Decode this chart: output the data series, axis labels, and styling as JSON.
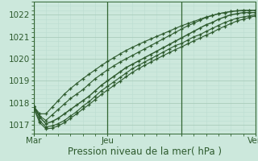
{
  "background_color": "#cce8dc",
  "plot_bg_color": "#cce8dc",
  "grid_color_major": "#aaccbb",
  "grid_color_minor": "#bbddd0",
  "line_color": "#2d5a2d",
  "xlim": [
    0,
    72
  ],
  "ylim": [
    1016.6,
    1022.6
  ],
  "yticks": [
    1017,
    1018,
    1019,
    1020,
    1021,
    1022
  ],
  "xtick_positions": [
    0,
    24,
    48,
    72
  ],
  "xtick_labels": [
    "Mar",
    "Jeu",
    "",
    "Ven"
  ],
  "xlabel": "Pression niveau de la mer( hPa )",
  "xlabel_fontsize": 8.5,
  "tick_fontsize": 7.5,
  "x_data": [
    0,
    2,
    4,
    6,
    8,
    10,
    12,
    14,
    16,
    18,
    20,
    22,
    24,
    26,
    28,
    30,
    32,
    34,
    36,
    38,
    40,
    42,
    44,
    46,
    48,
    50,
    52,
    54,
    56,
    58,
    60,
    62,
    64,
    66,
    68,
    70,
    72
  ],
  "y_center": [
    1017.85,
    1017.35,
    1017.05,
    1017.15,
    1017.3,
    1017.5,
    1017.7,
    1017.9,
    1018.1,
    1018.3,
    1018.55,
    1018.8,
    1019.0,
    1019.2,
    1019.4,
    1019.6,
    1019.75,
    1019.9,
    1020.05,
    1020.2,
    1020.35,
    1020.5,
    1020.65,
    1020.8,
    1020.95,
    1021.1,
    1021.25,
    1021.4,
    1021.55,
    1021.65,
    1021.8,
    1021.9,
    1022.0,
    1022.05,
    1022.1,
    1022.1,
    1022.1
  ],
  "y_upper": [
    1017.85,
    1017.4,
    1017.2,
    1017.45,
    1017.7,
    1017.95,
    1018.2,
    1018.4,
    1018.6,
    1018.85,
    1019.1,
    1019.3,
    1019.5,
    1019.68,
    1019.85,
    1020.0,
    1020.15,
    1020.3,
    1020.45,
    1020.6,
    1020.75,
    1020.9,
    1021.05,
    1021.2,
    1021.35,
    1021.5,
    1021.62,
    1021.75,
    1021.88,
    1021.97,
    1022.05,
    1022.1,
    1022.15,
    1022.18,
    1022.2,
    1022.2,
    1022.2
  ],
  "y_lower": [
    1017.8,
    1017.2,
    1016.9,
    1016.95,
    1017.05,
    1017.2,
    1017.4,
    1017.6,
    1017.85,
    1018.05,
    1018.3,
    1018.55,
    1018.75,
    1018.95,
    1019.15,
    1019.35,
    1019.55,
    1019.7,
    1019.85,
    1020.0,
    1020.15,
    1020.3,
    1020.45,
    1020.6,
    1020.7,
    1020.85,
    1021.0,
    1021.1,
    1021.25,
    1021.38,
    1021.52,
    1021.65,
    1021.75,
    1021.85,
    1021.9,
    1021.95,
    1022.0
  ],
  "y_upper2": [
    1017.85,
    1017.5,
    1017.5,
    1017.8,
    1018.1,
    1018.4,
    1018.65,
    1018.88,
    1019.1,
    1019.3,
    1019.5,
    1019.7,
    1019.88,
    1020.05,
    1020.22,
    1020.38,
    1020.52,
    1020.65,
    1020.78,
    1020.9,
    1021.02,
    1021.14,
    1021.26,
    1021.38,
    1021.5,
    1021.6,
    1021.7,
    1021.8,
    1021.9,
    1021.97,
    1022.05,
    1022.1,
    1022.15,
    1022.18,
    1022.2,
    1022.2,
    1022.2
  ],
  "y_lower2": [
    1017.75,
    1017.1,
    1016.82,
    1016.85,
    1016.95,
    1017.1,
    1017.3,
    1017.5,
    1017.72,
    1017.92,
    1018.15,
    1018.38,
    1018.58,
    1018.78,
    1018.98,
    1019.18,
    1019.38,
    1019.55,
    1019.7,
    1019.85,
    1020.0,
    1020.14,
    1020.28,
    1020.42,
    1020.54,
    1020.68,
    1020.82,
    1020.94,
    1021.08,
    1021.2,
    1021.35,
    1021.48,
    1021.6,
    1021.72,
    1021.8,
    1021.88,
    1021.95
  ]
}
